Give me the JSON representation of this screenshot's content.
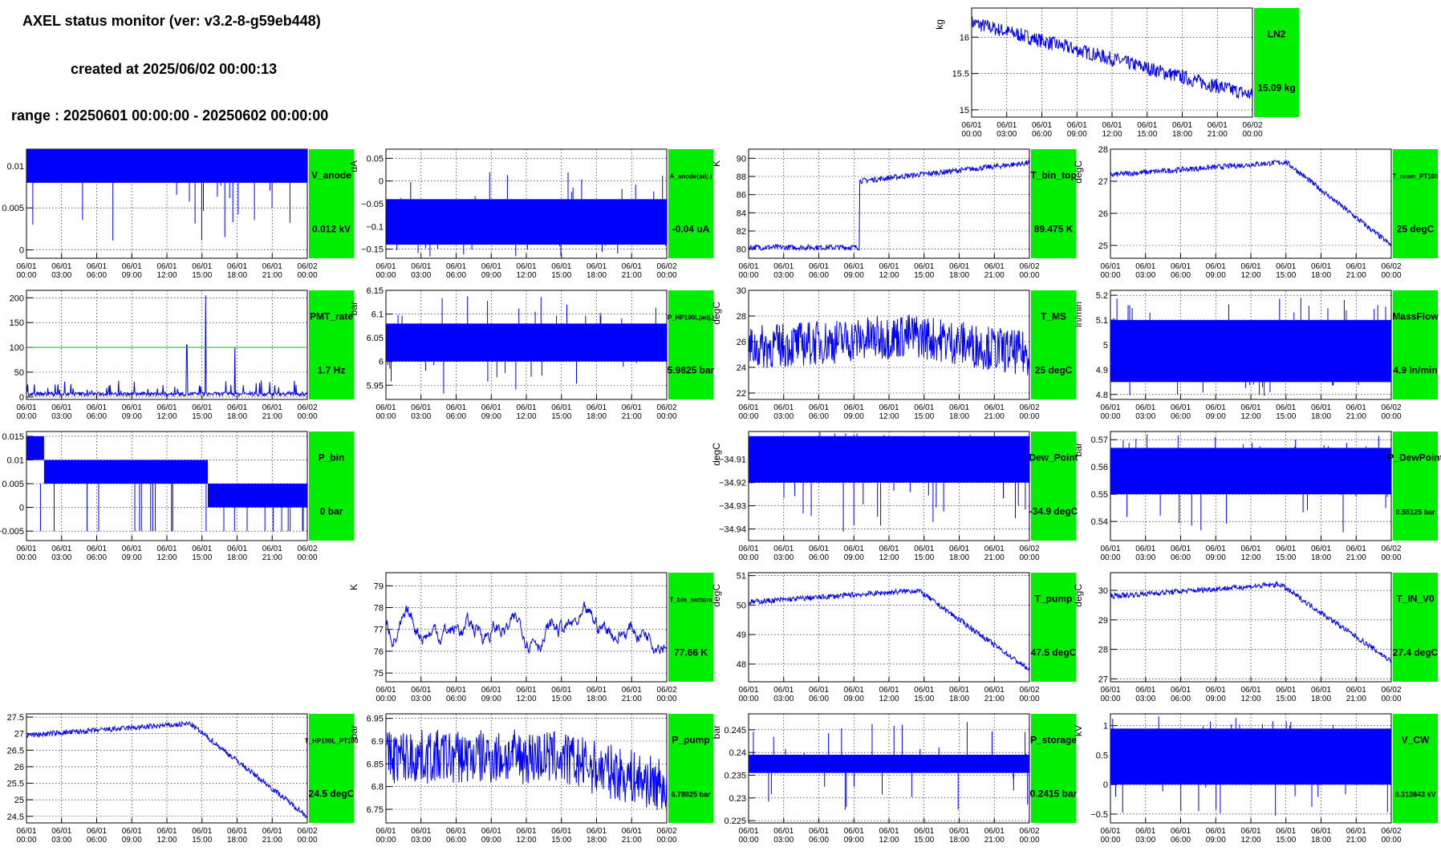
{
  "header": {
    "title": "AXEL status monitor (ver: v3.2-8-g59eb448)",
    "created": "created at 2025/06/02 00:00:13",
    "range": "range : 20250601 00:00:00 - 20250602 00:00:00"
  },
  "colors": {
    "trace": "#0000ff",
    "box": "#00ee00",
    "threshold": "#00cc00"
  },
  "x_ticks": [
    "06/01\n00:00",
    "06/01\n03:00",
    "06/01\n06:00",
    "06/01\n09:00",
    "06/01\n12:00",
    "06/01\n15:00",
    "06/01\n18:00",
    "06/01\n21:00",
    "06/02\n00:00"
  ],
  "chart_data": [
    {
      "id": "LN2",
      "type": "line",
      "unit": "kg",
      "name": "LN2",
      "value_text": "15.09 kg",
      "ylim": [
        14.9,
        16.4
      ],
      "yticks": [
        15,
        15.5,
        16
      ],
      "yticklabels": [
        "15",
        "15.5",
        "16"
      ],
      "shape": "ramp",
      "band": 0.2,
      "start_value": 16.2,
      "end_value": 15.2
    },
    {
      "id": "V_anode",
      "type": "line",
      "unit": "kV",
      "name": "V_anode",
      "value_text": "0.012 kV",
      "ylim": [
        -0.001,
        0.012
      ],
      "yticks": [
        0,
        0.005,
        0.01
      ],
      "yticklabels": [
        "0",
        "0.005",
        "0.01"
      ],
      "shape": "band",
      "band_low": 0.008,
      "band_high": 0.012
    },
    {
      "id": "A_anode",
      "type": "line",
      "unit": "uA",
      "name": "A_anode(adj.)",
      "value_text": "-0.04 uA",
      "ylim": [
        -0.17,
        0.07
      ],
      "yticks": [
        -0.15,
        -0.1,
        -0.05,
        0,
        0.05
      ],
      "yticklabels": [
        "−0.15",
        "−0.1",
        "−0.05",
        "0",
        "0.05"
      ],
      "shape": "band",
      "band_low": -0.14,
      "band_high": -0.04
    },
    {
      "id": "T_bin_top",
      "type": "line",
      "unit": "K",
      "name": "T_bin_top",
      "value_text": "89.475 K",
      "ylim": [
        79,
        91
      ],
      "yticks": [
        80,
        82,
        84,
        86,
        88,
        90
      ],
      "yticklabels": [
        "80",
        "82",
        "84",
        "86",
        "88",
        "90"
      ],
      "shape": "step",
      "start_value": 80.2,
      "step_at": 9.5,
      "step_value": 87.5,
      "end_value": 89.5
    },
    {
      "id": "T_room_PT100",
      "type": "line",
      "unit": "degC",
      "name": "T_room_PT100",
      "value_text": "25 degC",
      "ylim": [
        24.6,
        28
      ],
      "yticks": [
        25,
        26,
        27,
        28
      ],
      "yticklabels": [
        "25",
        "26",
        "27",
        "28"
      ],
      "shape": "rise_fall",
      "start_value": 27.2,
      "peak_at": 15,
      "peak_value": 27.6,
      "end_value": 25
    },
    {
      "id": "PMT_rate",
      "type": "line",
      "unit": "Hz",
      "name": "PMT_rate",
      "value_text": "1.7 Hz",
      "ylim": [
        -5,
        215
      ],
      "yticks": [
        0,
        50,
        100,
        150,
        200
      ],
      "yticklabels": [
        "0",
        "50",
        "100",
        "150",
        "200"
      ],
      "shape": "spikes",
      "threshold": 100
    },
    {
      "id": "P_HP190L",
      "type": "line",
      "unit": "bar",
      "name": "P_HP190L(adj.)",
      "value_text": "5.9825 bar",
      "ylim": [
        5.92,
        6.15
      ],
      "yticks": [
        5.95,
        6,
        6.05,
        6.1,
        6.15
      ],
      "yticklabels": [
        "5.95",
        "6",
        "6.05",
        "6.1",
        "6.15"
      ],
      "shape": "band",
      "band_low": 6.0,
      "band_high": 6.08
    },
    {
      "id": "T_MS",
      "type": "line",
      "unit": "degC",
      "name": "T_MS",
      "value_text": "25 degC",
      "ylim": [
        21.5,
        30
      ],
      "yticks": [
        22,
        24,
        26,
        28,
        30
      ],
      "yticklabels": [
        "22",
        "24",
        "26",
        "28",
        "30"
      ],
      "shape": "noisy_hump",
      "start_value": 25.5,
      "peak_at": 14,
      "peak_value": 26.5,
      "end_value": 25
    },
    {
      "id": "MassFlow",
      "type": "line",
      "unit": "ln/min",
      "name": "MassFlow",
      "value_text": "4.9 ln/min",
      "ylim": [
        4.78,
        5.22
      ],
      "yticks": [
        4.8,
        4.9,
        5,
        5.1,
        5.2
      ],
      "yticklabels": [
        "4.8",
        "4.9",
        "5",
        "5.1",
        "5.2"
      ],
      "shape": "band",
      "band_low": 4.85,
      "band_high": 5.1
    },
    {
      "id": "P_bin",
      "type": "line",
      "unit": "bar",
      "name": "P_bin",
      "value_text": "0 bar",
      "ylim": [
        -0.007,
        0.016
      ],
      "yticks": [
        -0.005,
        0,
        0.005,
        0.01,
        0.015
      ],
      "yticklabels": [
        "−0.005",
        "0",
        "0.005",
        "0.01",
        "0.015"
      ],
      "shape": "steps",
      "levels": [
        [
          0,
          1.5,
          0.015
        ],
        [
          1.5,
          15.5,
          0.01
        ],
        [
          15.5,
          24,
          0.005
        ]
      ]
    },
    {
      "id": "Dew_Point",
      "type": "line",
      "unit": "degC",
      "name": "Dew_Point",
      "value_text": "-34.9 degC",
      "ylim": [
        -34.945,
        -34.898
      ],
      "yticks": [
        -34.94,
        -34.93,
        -34.92,
        -34.91
      ],
      "yticklabels": [
        "−34.94",
        "−34.93",
        "−34.92",
        "−34.91"
      ],
      "shape": "band",
      "band_low": -34.92,
      "band_high": -34.9
    },
    {
      "id": "P_DewPoint",
      "type": "line",
      "unit": "bar",
      "name": "P_DewPoint",
      "value_text": "0.55125 bar",
      "ylim": [
        0.533,
        0.573
      ],
      "yticks": [
        0.54,
        0.55,
        0.56,
        0.57
      ],
      "yticklabels": [
        "0.54",
        "0.55",
        "0.56",
        "0.57"
      ],
      "shape": "band",
      "band_low": 0.55,
      "band_high": 0.567
    },
    {
      "id": "T_bin_bottom",
      "type": "line",
      "unit": "K",
      "name": "T_bin_bottom",
      "value_text": "77.66 K",
      "ylim": [
        74.6,
        79.6
      ],
      "yticks": [
        75,
        76,
        77,
        78,
        79
      ],
      "yticklabels": [
        "75",
        "76",
        "77",
        "78",
        "79"
      ],
      "shape": "noise",
      "center": 77,
      "band": 2.5
    },
    {
      "id": "T_pump",
      "type": "line",
      "unit": "degC",
      "name": "T_pump",
      "value_text": "47.5 degC",
      "ylim": [
        47.4,
        51.1
      ],
      "yticks": [
        48,
        49,
        50,
        51
      ],
      "yticklabels": [
        "48",
        "49",
        "50",
        "51"
      ],
      "shape": "rise_fall",
      "start_value": 50.1,
      "peak_at": 14.5,
      "peak_value": 50.5,
      "end_value": 47.8
    },
    {
      "id": "T_IN_V0",
      "type": "line",
      "unit": "degC",
      "name": "T_IN_V0",
      "value_text": "27.4 degC",
      "ylim": [
        26.9,
        30.6
      ],
      "yticks": [
        27,
        28,
        29,
        30
      ],
      "yticklabels": [
        "27",
        "28",
        "29",
        "30"
      ],
      "shape": "rise_fall",
      "start_value": 29.8,
      "peak_at": 14.5,
      "peak_value": 30.2,
      "end_value": 27.6
    },
    {
      "id": "T_HP190L_PT100",
      "type": "line",
      "unit": "degC",
      "name": "T_HP190L_PT100",
      "value_text": "24.5 degC",
      "ylim": [
        24.3,
        27.6
      ],
      "yticks": [
        24.5,
        25,
        25.5,
        26,
        26.5,
        27,
        27.5
      ],
      "yticklabels": [
        "24.5",
        "25",
        "25.5",
        "26",
        "26.5",
        "27",
        "27.5"
      ],
      "shape": "rise_fall",
      "start_value": 26.95,
      "peak_at": 14,
      "peak_value": 27.3,
      "end_value": 24.5
    },
    {
      "id": "P_pump",
      "type": "line",
      "unit": "bar",
      "name": "P_pump",
      "value_text": "6.78825 bar",
      "ylim": [
        6.72,
        6.96
      ],
      "yticks": [
        6.75,
        6.8,
        6.85,
        6.9,
        6.95
      ],
      "yticklabels": [
        "6.75",
        "6.8",
        "6.85",
        "6.9",
        "6.95"
      ],
      "shape": "wide_fall",
      "start_value": 6.865,
      "fall_at": 14.5,
      "end_value": 6.8,
      "band": 0.12
    },
    {
      "id": "P_storage",
      "type": "line",
      "unit": "bar",
      "name": "P_storage",
      "value_text": "0.2415 bar",
      "ylim": [
        0.2245,
        0.2485
      ],
      "yticks": [
        0.225,
        0.23,
        0.235,
        0.24,
        0.245
      ],
      "yticklabels": [
        "0.225",
        "0.23",
        "0.235",
        "0.24",
        "0.245"
      ],
      "shape": "band",
      "band_low": 0.2355,
      "band_high": 0.2395
    },
    {
      "id": "V_CW",
      "type": "line",
      "unit": "kV",
      "name": "V_CW",
      "value_text": "0.313843 kV",
      "ylim": [
        -0.65,
        1.2
      ],
      "yticks": [
        -0.5,
        0,
        0.5,
        1
      ],
      "yticklabels": [
        "−0.5",
        "0",
        "0.5",
        "1"
      ],
      "shape": "band",
      "band_low": 0,
      "band_high": 0.95
    }
  ]
}
